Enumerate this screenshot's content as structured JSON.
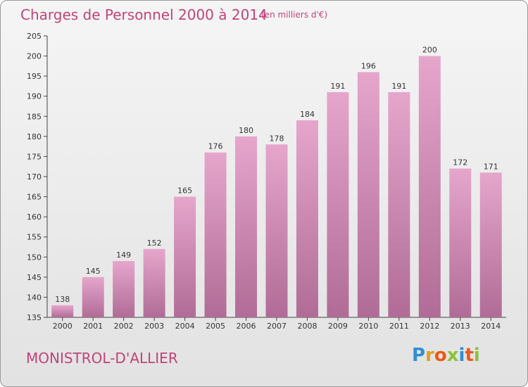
{
  "title": "Charges de Personnel 2000 à 2014",
  "subtitle": "(en milliers d'€)",
  "commune": "MONISTROL-D'ALLIER",
  "logo": {
    "letters": [
      "P",
      "r",
      "o",
      "x",
      "i",
      "t",
      "i"
    ],
    "colors": [
      "#2f8fd4",
      "#e0a020",
      "#e85a1a",
      "#8ac23a",
      "#2f8fd4",
      "#e85a1a",
      "#8ac23a"
    ]
  },
  "colors": {
    "accent": "#c0447a",
    "bar_top": "#e6a6cc",
    "bar_bottom": "#b06c96"
  },
  "chart_data": {
    "type": "bar",
    "categories": [
      "2000",
      "2001",
      "2002",
      "2003",
      "2004",
      "2005",
      "2006",
      "2007",
      "2008",
      "2009",
      "2010",
      "2011",
      "2012",
      "2013",
      "2014"
    ],
    "values": [
      138,
      145,
      149,
      152,
      165,
      176,
      180,
      178,
      184,
      191,
      196,
      191,
      200,
      172,
      171
    ],
    "ylim": [
      135,
      205
    ],
    "yticks": [
      135,
      140,
      145,
      150,
      155,
      160,
      165,
      170,
      175,
      180,
      185,
      190,
      195,
      200,
      205
    ],
    "grid": false,
    "legend": "none"
  }
}
